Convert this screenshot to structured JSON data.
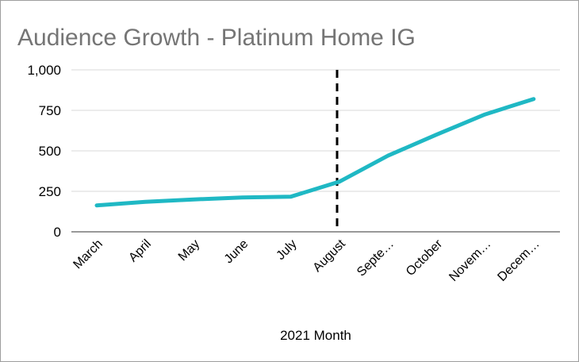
{
  "chart_data": {
    "type": "line",
    "title": "Audience Growth - Platinum Home IG",
    "xlabel": "2021 Month",
    "ylabel": "",
    "categories": [
      "March",
      "April",
      "May",
      "June",
      "July",
      "August",
      "Septe…",
      "October",
      "Novem…",
      "Decem…"
    ],
    "series": [
      {
        "values": [
          163,
          185,
          200,
          212,
          217,
          310,
          470,
          600,
          725,
          820
        ]
      }
    ],
    "ylim": [
      0,
      1000
    ],
    "yticks": [
      0,
      250,
      500,
      750,
      1000
    ],
    "ytick_labels": [
      "0",
      "250",
      "500",
      "750",
      "1,000"
    ],
    "grid": true,
    "legend": "none",
    "marker_category": "August",
    "colors": {
      "line": "#1fb8c4",
      "marker": "#000000",
      "grid": "#d9d9d9",
      "title": "#757575"
    }
  }
}
